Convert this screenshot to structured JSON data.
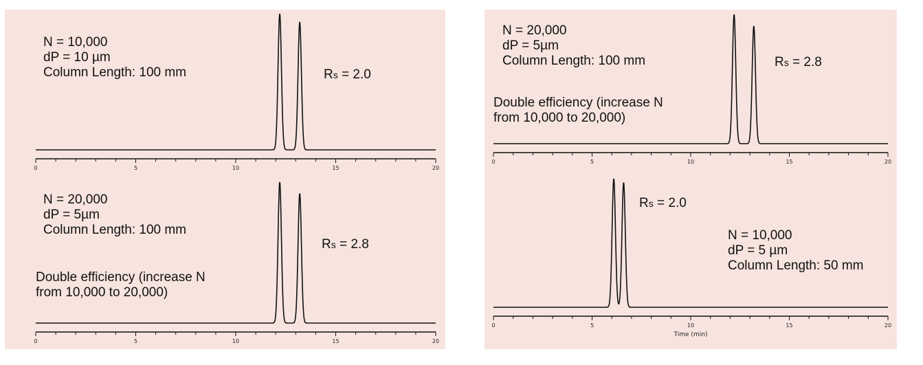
{
  "chart_data": [
    {
      "type": "line",
      "panel": "top-left",
      "x_range": [
        0,
        20
      ],
      "tick_labels": [
        "0",
        "5",
        "10",
        "15",
        "20"
      ],
      "xlabel": "",
      "peaks": [
        {
          "x": 12.2,
          "height": 1.0
        },
        {
          "x": 13.2,
          "height": 0.94
        }
      ],
      "annotation": [
        "N = 10,000",
        "dP = 10 µm",
        "Column Length: 100 mm"
      ],
      "note": [],
      "rs_main": "R",
      "rs_sub": "s",
      "rs_value": " = 2.0"
    },
    {
      "type": "line",
      "panel": "bottom-left",
      "x_range": [
        0,
        20
      ],
      "tick_labels": [
        "0",
        "5",
        "10",
        "15",
        "20"
      ],
      "xlabel": "",
      "peaks": [
        {
          "x": 12.2,
          "height": 1.0
        },
        {
          "x": 13.2,
          "height": 0.92
        }
      ],
      "annotation": [
        "N = 20,000",
        "dP = 5µm",
        "Column Length: 100 mm"
      ],
      "note": [
        "Double efficiency (increase N",
        "from 10,000 to 20,000)"
      ],
      "rs_main": "R",
      "rs_sub": "s",
      "rs_value": " = 2.8"
    },
    {
      "type": "line",
      "panel": "top-right",
      "x_range": [
        0,
        20
      ],
      "tick_labels": [
        "0",
        "5",
        "10",
        "15",
        "20"
      ],
      "xlabel": "",
      "peaks": [
        {
          "x": 12.2,
          "height": 1.0
        },
        {
          "x": 13.2,
          "height": 0.91
        }
      ],
      "annotation": [
        "N = 20,000",
        "dP = 5µm",
        "Column Length: 100 mm"
      ],
      "note": [
        "Double efficiency (increase N",
        "from 10,000 to 20,000)"
      ],
      "rs_main": "R",
      "rs_sub": "s",
      "rs_value": " = 2.8"
    },
    {
      "type": "line",
      "panel": "bottom-right",
      "x_range": [
        0,
        20
      ],
      "tick_labels": [
        "0",
        "5",
        "10",
        "15",
        "20"
      ],
      "xlabel": "Time (min)",
      "peaks": [
        {
          "x": 6.1,
          "height": 1.0
        },
        {
          "x": 6.6,
          "height": 0.97
        }
      ],
      "annotation": [
        "N = 10,000",
        "dP = 5 µm",
        "Column Length: 50 mm"
      ],
      "note": [],
      "rs_main": "R",
      "rs_sub": "s",
      "rs_value": " = 2.0"
    }
  ],
  "colors": {
    "panel_background": "#f7e4df",
    "trace": "#111111"
  }
}
